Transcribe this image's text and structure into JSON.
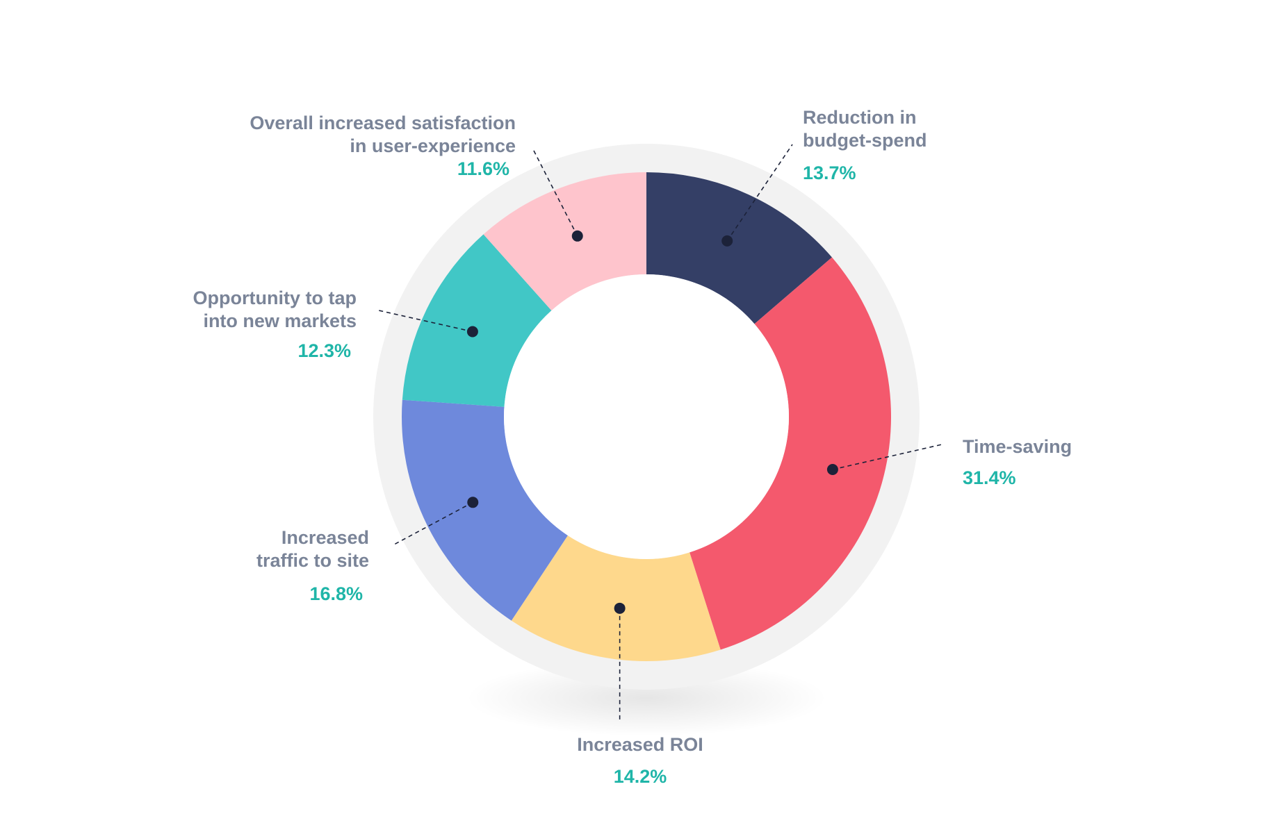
{
  "chart_data": {
    "type": "pie",
    "variant": "donut",
    "title": "",
    "slices": [
      {
        "lines": [
          "Reduction in",
          "budget-spend"
        ],
        "value": 13.7,
        "display": "13.7%",
        "color": "#343f66"
      },
      {
        "lines": [
          "Time-saving"
        ],
        "value": 31.4,
        "display": "31.4%",
        "color": "#f4596d"
      },
      {
        "lines": [
          "Increased ROI"
        ],
        "value": 14.2,
        "display": "14.2%",
        "color": "#fed88c"
      },
      {
        "lines": [
          "Increased",
          "traffic to site"
        ],
        "value": 16.8,
        "display": "16.8%",
        "color": "#6e89dc"
      },
      {
        "lines": [
          "Opportunity to tap",
          "into new markets"
        ],
        "value": 12.3,
        "display": "12.3%",
        "color": "#41c7c6"
      },
      {
        "lines": [
          "Overall increased satisfaction",
          "in user-experience"
        ],
        "value": 11.6,
        "display": "11.6%",
        "color": "#fec4cc"
      }
    ],
    "start_position": "12 o'clock",
    "direction": "clockwise",
    "legend": "none",
    "colors": {
      "label": "#7a8498",
      "value": "#1fb5a8",
      "connector": "#1c2239",
      "ring_background": "#f2f2f2"
    }
  }
}
